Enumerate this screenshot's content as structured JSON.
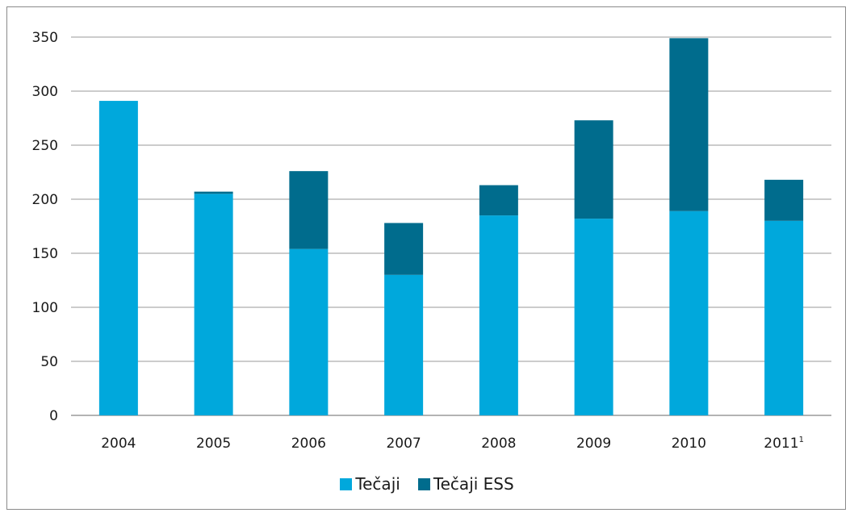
{
  "chart_data": {
    "type": "bar",
    "stacked": true,
    "categories": [
      "2004",
      "2005",
      "2006",
      "2007",
      "2008",
      "2009",
      "2010",
      "2011"
    ],
    "category_superscripts": [
      "",
      "",
      "",
      "",
      "",
      "",
      "",
      "1"
    ],
    "series": [
      {
        "name": "Tečaji",
        "color": "#00a8dc",
        "values": [
          291,
          205,
          154,
          130,
          185,
          182,
          189,
          180
        ]
      },
      {
        "name": "Tečaji ESS",
        "color": "#006c8d",
        "values": [
          0,
          2,
          72,
          48,
          28,
          91,
          160,
          38
        ]
      }
    ],
    "ylim": [
      0,
      350
    ],
    "yticks": [
      0,
      50,
      100,
      150,
      200,
      250,
      300,
      350
    ],
    "ytick_labels": [
      "0",
      "50",
      "100",
      "150",
      "200",
      "250",
      "300",
      "350"
    ],
    "grid": true,
    "legend_position": "bottom",
    "title": "",
    "xlabel": "",
    "ylabel": ""
  }
}
